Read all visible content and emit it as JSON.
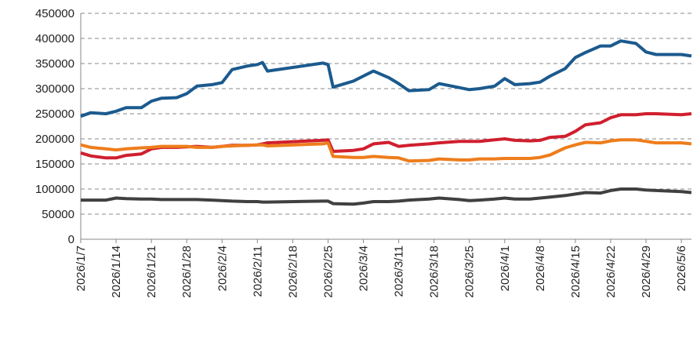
{
  "chart_data": {
    "type": "line",
    "x": [
      "2026/1/7",
      "2026/1/9",
      "2026/1/12",
      "2026/1/14",
      "2026/1/16",
      "2026/1/19",
      "2026/1/21",
      "2026/1/23",
      "2026/1/26",
      "2026/1/28",
      "2026/1/30",
      "2026/2/2",
      "2026/2/4",
      "2026/2/6",
      "2026/2/9",
      "2026/2/11",
      "2026/2/12",
      "2026/2/13",
      "2026/2/24",
      "2026/2/25",
      "2026/2/26",
      "2026/3/2",
      "2026/3/4",
      "2026/3/6",
      "2026/3/9",
      "2026/3/11",
      "2026/3/13",
      "2026/3/17",
      "2026/3/19",
      "2026/3/23",
      "2026/3/25",
      "2026/3/27",
      "2026/3/30",
      "2026/4/1",
      "2026/4/3",
      "2026/4/6",
      "2026/4/8",
      "2026/4/10",
      "2026/4/13",
      "2026/4/15",
      "2026/4/17",
      "2026/4/20",
      "2026/4/22",
      "2026/4/24",
      "2026/4/27",
      "2026/4/29",
      "2026/5/1",
      "2026/5/6",
      "2026/5/8"
    ],
    "series": [
      {
        "color": "#1b5a8e",
        "values": [
          245000,
          252000,
          250000,
          255000,
          262000,
          262000,
          275000,
          281000,
          282000,
          290000,
          305000,
          308000,
          312000,
          338000,
          345000,
          348000,
          352000,
          335000,
          351000,
          348000,
          303000,
          315000,
          325000,
          335000,
          322000,
          310000,
          296000,
          298000,
          310000,
          302000,
          298000,
          300000,
          305000,
          320000,
          308000,
          310000,
          313000,
          325000,
          340000,
          362000,
          372000,
          385000,
          385000,
          395000,
          390000,
          373000,
          368000,
          368000,
          365000
        ]
      },
      {
        "color": "#d01f2e",
        "values": [
          172000,
          166000,
          162000,
          162000,
          167000,
          170000,
          180000,
          183000,
          183000,
          184000,
          185000,
          183000,
          185000,
          187000,
          187000,
          188000,
          190000,
          192000,
          197000,
          198000,
          175000,
          177000,
          180000,
          190000,
          193000,
          185000,
          187000,
          190000,
          192000,
          195000,
          195000,
          195000,
          198000,
          200000,
          197000,
          196000,
          197000,
          203000,
          205000,
          215000,
          228000,
          232000,
          242000,
          248000,
          248000,
          250000,
          250000,
          248000,
          250000
        ]
      },
      {
        "color": "#ee7d1c",
        "values": [
          188000,
          183000,
          180000,
          178000,
          180000,
          182000,
          183000,
          185000,
          185000,
          185000,
          183000,
          183000,
          185000,
          186000,
          187000,
          188000,
          188000,
          186000,
          190000,
          192000,
          165000,
          163000,
          163000,
          165000,
          163000,
          162000,
          156000,
          157000,
          160000,
          158000,
          158000,
          160000,
          160000,
          161000,
          161000,
          161000,
          163000,
          168000,
          182000,
          188000,
          193000,
          192000,
          196000,
          198000,
          198000,
          195000,
          192000,
          192000,
          190000
        ]
      },
      {
        "color": "#404040",
        "values": [
          78000,
          78000,
          78000,
          82000,
          81000,
          80000,
          80000,
          79000,
          79000,
          79000,
          79000,
          78000,
          77000,
          76000,
          75000,
          75000,
          74000,
          74000,
          76000,
          76000,
          71000,
          70000,
          72000,
          75000,
          75000,
          76000,
          78000,
          80000,
          82000,
          79000,
          77000,
          78000,
          80000,
          82000,
          80000,
          80000,
          82000,
          84000,
          87000,
          90000,
          93000,
          92000,
          97000,
          100000,
          100000,
          98000,
          97000,
          95000,
          93000
        ]
      }
    ],
    "xlim": [
      "2026/1/7",
      "2026/5/8"
    ],
    "xticks": [
      "2026/1/7",
      "2026/1/14",
      "2026/1/21",
      "2026/1/28",
      "2026/2/4",
      "2026/2/11",
      "2026/2/18",
      "2026/2/25",
      "2026/3/4",
      "2026/3/11",
      "2026/3/18",
      "2026/3/25",
      "2026/4/1",
      "2026/4/8",
      "2026/4/15",
      "2026/4/22",
      "2026/4/29",
      "2026/5/6"
    ],
    "ylim": [
      0,
      450000
    ],
    "yticks": [
      0,
      50000,
      100000,
      150000,
      200000,
      250000,
      300000,
      350000,
      400000,
      450000
    ],
    "grid": true
  }
}
